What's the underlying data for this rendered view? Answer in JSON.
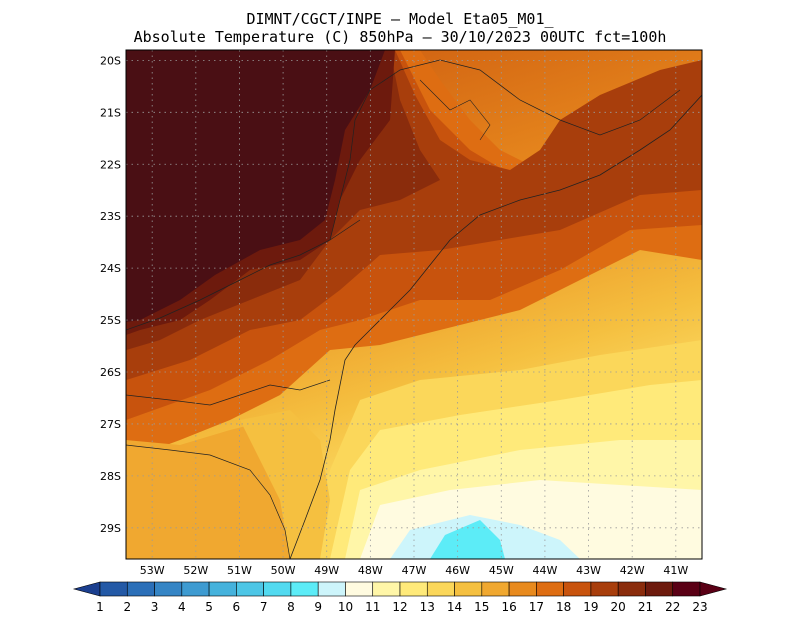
{
  "header": {
    "line1": "DIMNT/CGCT/INPE –  Model Eta05_M01_",
    "line2": "Absolute Temperature (C) 850hPa –  30/10/2023 00UTC fct=100h"
  },
  "map": {
    "lat_labels": [
      "20S",
      "21S",
      "22S",
      "23S",
      "24S",
      "25S",
      "26S",
      "27S",
      "28S",
      "29S"
    ],
    "lon_labels": [
      "53W",
      "52W",
      "51W",
      "50W",
      "49W",
      "48W",
      "47W",
      "46W",
      "45W",
      "44W",
      "43W",
      "42W",
      "41W"
    ],
    "lat_range": [
      -29.6,
      -19.8
    ],
    "lon_range": [
      -53.6,
      -40.4
    ]
  },
  "colorbar": {
    "levels": [
      "1",
      "2",
      "3",
      "4",
      "5",
      "6",
      "7",
      "8",
      "9",
      "10",
      "11",
      "12",
      "13",
      "14",
      "15",
      "16",
      "17",
      "18",
      "19",
      "20",
      "21",
      "22",
      "23"
    ],
    "colors": [
      "#1b3f8f",
      "#2359a6",
      "#2b6fb8",
      "#3585c5",
      "#3e9bd1",
      "#45b2dc",
      "#4dc6e6",
      "#52daf0",
      "#5cecf7",
      "#cdf5fb",
      "#fffbe0",
      "#fff6a8",
      "#ffea7a",
      "#fbd75a",
      "#f5c040",
      "#f0a830",
      "#e88a1e",
      "#de6d12",
      "#c8530d",
      "#a83e0c",
      "#8a2c0c",
      "#6d1a0d",
      "#5a0015"
    ]
  }
}
